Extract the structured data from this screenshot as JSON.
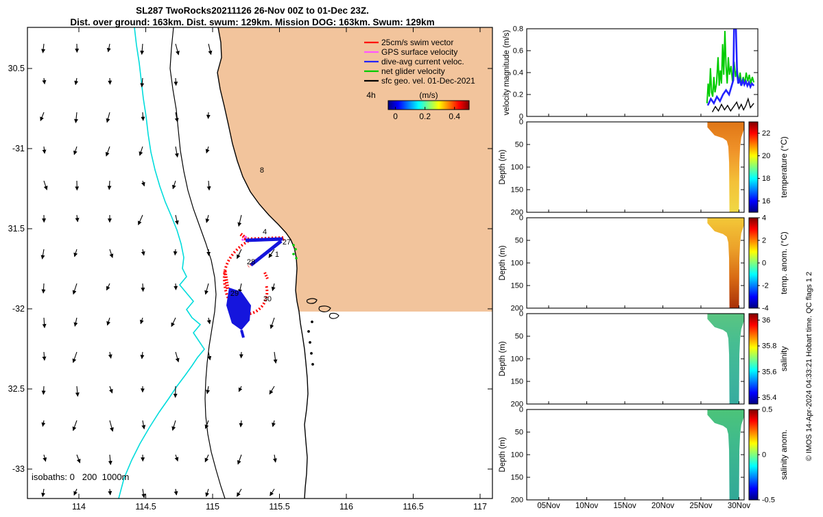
{
  "header": {
    "title": "SL287 TwoRocks20211126 26-Nov 00Z to 01-Dec 23Z.",
    "subtitle": "Dist. over ground: 163km. Dist. swum: 129km. Mission DOG: 163km. Swum: 129km"
  },
  "watermark": "© IMOS 14-Apr-2024 04:33:21 Hobart time. QC flags 1 2",
  "map": {
    "land_color": "#f2c49c",
    "isobath_200_color": "#00dcdc",
    "isobaths_note": "isobaths: 0   200  1000m",
    "xticks": [
      {
        "v": 114,
        "s": "114"
      },
      {
        "v": 114.5,
        "s": "114.5"
      },
      {
        "v": 115,
        "s": "115"
      },
      {
        "v": 115.5,
        "s": "115.5"
      },
      {
        "v": 116,
        "s": "116"
      },
      {
        "v": 116.5,
        "s": "116.5"
      },
      {
        "v": 117,
        "s": "117"
      }
    ],
    "yticks": [
      {
        "v": 30.5,
        "s": "30.5"
      },
      {
        "v": 31,
        "s": "-31"
      },
      {
        "v": 31.5,
        "s": "31.5"
      },
      {
        "v": 32,
        "s": "-32"
      },
      {
        "v": 32.5,
        "s": "32.5"
      },
      {
        "v": 33,
        "s": "-33"
      }
    ],
    "legend": {
      "duration_label": "4h",
      "colorbar_title": "(m/s)",
      "colorbar_ticks": [
        {
          "f": 0.09,
          "s": "0"
        },
        {
          "f": 0.455,
          "s": "0.2"
        },
        {
          "f": 0.82,
          "s": "0.4"
        }
      ],
      "items": [
        {
          "label": "25cm/s swim vector",
          "color": "#ff0000"
        },
        {
          "label": "GPS surface velocity",
          "color": "#ff55ff"
        },
        {
          "label": "dive-avg current veloc.",
          "color": "#2222ff"
        },
        {
          "label": "net glider velocity",
          "color": "#00cc00"
        },
        {
          "label": "sfc geo. vel. 01-Dec-2021",
          "color": "#000000"
        }
      ]
    }
  },
  "panels": {
    "ylabel_velocity": "velocity magnitude (m/s)",
    "ylabel_depth": "Depth (m)",
    "depth_ticks": [
      {
        "v": 0,
        "s": "0"
      },
      {
        "v": 50,
        "s": "50"
      },
      {
        "v": 100,
        "s": "100"
      },
      {
        "v": 150,
        "s": "150"
      },
      {
        "v": 200,
        "s": "200"
      }
    ],
    "date_ticks": [
      {
        "v": 5,
        "s": "05Nov"
      },
      {
        "v": 10,
        "s": "10Nov"
      },
      {
        "v": 15,
        "s": "15Nov"
      },
      {
        "v": 20,
        "s": "20Nov"
      },
      {
        "v": 25,
        "s": "25Nov"
      },
      {
        "v": 30,
        "s": "30Nov"
      }
    ]
  },
  "chart_data": [
    {
      "id": "map",
      "type": "map",
      "title": "Glider mission track off Two Rocks, Western Australia",
      "xlim": [
        113.62,
        117.09
      ],
      "ylim": [
        -33.19,
        -30.24
      ],
      "isobaths_m": [
        0,
        200,
        1000
      ],
      "waypoints": [
        {
          "label": "8",
          "lon": 115.369,
          "lat": -31.132
        },
        {
          "label": "4",
          "lon": 115.39,
          "lat": -31.517
        },
        {
          "label": "27",
          "lon": 115.554,
          "lat": -31.581
        },
        {
          "label": "1",
          "lon": 115.482,
          "lat": -31.658
        },
        {
          "label": "28",
          "lon": 115.287,
          "lat": -31.705
        },
        {
          "label": "29",
          "lon": 115.164,
          "lat": -31.902
        },
        {
          "label": "30",
          "lon": 115.41,
          "lat": -31.936
        }
      ]
    },
    {
      "id": "velocity",
      "type": "line",
      "ylabel": "velocity magnitude (m/s)",
      "ylim": [
        0,
        0.8
      ],
      "yticks": [
        {
          "v": 0,
          "s": "0"
        },
        {
          "v": 0.2,
          "s": "0.2"
        },
        {
          "v": 0.4,
          "s": "0.4"
        },
        {
          "v": 0.6,
          "s": "0.6"
        },
        {
          "v": 0.8,
          "s": "0.8"
        }
      ],
      "x_unit": "day of November 2021",
      "series": [
        {
          "name": "net glider velocity",
          "color": "#00cc00",
          "width": 2,
          "points": [
            [
              25.8,
              0.12
            ],
            [
              25.95,
              0.3
            ],
            [
              26.1,
              0.18
            ],
            [
              26.25,
              0.44
            ],
            [
              26.4,
              0.22
            ],
            [
              26.55,
              0.18
            ],
            [
              26.7,
              0.36
            ],
            [
              26.85,
              0.22
            ],
            [
              27.05,
              0.3
            ],
            [
              27.25,
              0.54
            ],
            [
              27.4,
              0.28
            ],
            [
              27.55,
              0.42
            ],
            [
              27.7,
              0.3
            ],
            [
              27.85,
              0.66
            ],
            [
              28.0,
              0.38
            ],
            [
              28.15,
              0.78
            ],
            [
              28.3,
              0.46
            ],
            [
              28.45,
              0.3
            ],
            [
              28.6,
              0.54
            ],
            [
              28.75,
              0.38
            ],
            [
              28.95,
              0.46
            ],
            [
              29.15,
              0.32
            ],
            [
              29.35,
              0.5
            ],
            [
              29.55,
              0.36
            ],
            [
              29.75,
              0.44
            ],
            [
              29.95,
              0.3
            ],
            [
              30.15,
              0.4
            ],
            [
              30.35,
              0.28
            ],
            [
              30.55,
              0.36
            ],
            [
              30.75,
              0.3
            ],
            [
              30.95,
              0.4
            ],
            [
              31.15,
              0.32
            ],
            [
              31.35,
              0.38
            ],
            [
              31.55,
              0.3
            ],
            [
              31.75,
              0.36
            ],
            [
              31.95,
              0.31
            ]
          ]
        },
        {
          "name": "dive-avg current veloc.",
          "color": "#2222ff",
          "width": 2.6,
          "points": [
            [
              25.9,
              0.1
            ],
            [
              26.3,
              0.16
            ],
            [
              26.7,
              0.12
            ],
            [
              27.1,
              0.18
            ],
            [
              27.5,
              0.14
            ],
            [
              27.9,
              0.2
            ],
            [
              28.3,
              0.24
            ],
            [
              28.7,
              0.2
            ],
            [
              29.0,
              0.27
            ],
            [
              29.25,
              0.33
            ],
            [
              29.35,
              0.8
            ],
            [
              29.6,
              0.8
            ],
            [
              29.75,
              0.4
            ],
            [
              29.9,
              0.3
            ],
            [
              30.1,
              0.34
            ],
            [
              30.3,
              0.28
            ],
            [
              30.5,
              0.33
            ],
            [
              30.7,
              0.29
            ],
            [
              30.9,
              0.32
            ],
            [
              31.1,
              0.28
            ],
            [
              31.3,
              0.31
            ],
            [
              31.5,
              0.27
            ],
            [
              31.7,
              0.3
            ],
            [
              31.95,
              0.28
            ]
          ]
        },
        {
          "name": "sfc geo. vel. 01-Dec-2021",
          "color": "#000000",
          "width": 1.4,
          "points": [
            [
              26.5,
              0.04
            ],
            [
              26.9,
              0.09
            ],
            [
              27.3,
              0.05
            ],
            [
              27.7,
              0.11
            ],
            [
              28.1,
              0.06
            ],
            [
              28.5,
              0.1
            ],
            [
              28.9,
              0.05
            ],
            [
              29.3,
              0.09
            ],
            [
              29.7,
              0.13
            ],
            [
              30.0,
              0.07
            ],
            [
              30.3,
              0.11
            ],
            [
              30.6,
              0.06
            ],
            [
              30.9,
              0.1
            ],
            [
              31.2,
              0.16
            ],
            [
              31.5,
              0.08
            ],
            [
              31.95,
              0.12
            ]
          ]
        }
      ]
    },
    {
      "id": "temperature",
      "type": "heatmap",
      "ylabel": "Depth (m)",
      "clabel": "temperature (°C)",
      "ylim": [
        200,
        0
      ],
      "colorbar": {
        "range": [
          15,
          23
        ],
        "ticks": [
          {
            "v": 22,
            "s": "22"
          },
          {
            "v": 20,
            "s": "20"
          },
          {
            "v": 18,
            "s": "18"
          },
          {
            "v": 16,
            "s": "16"
          }
        ]
      },
      "gradient": [
        "#e07616",
        "#f0942a",
        "#f3c138",
        "#f0d844"
      ],
      "coverage": [
        [
          25.85,
          0
        ],
        [
          30.7,
          0
        ],
        [
          30.7,
          14
        ],
        [
          30.55,
          22
        ],
        [
          30.3,
          34
        ],
        [
          30.15,
          55
        ],
        [
          30.05,
          90
        ],
        [
          30.0,
          200
        ],
        [
          28.75,
          200
        ],
        [
          28.7,
          90
        ],
        [
          28.6,
          55
        ],
        [
          28.4,
          42
        ],
        [
          27.9,
          36
        ],
        [
          26.8,
          30
        ],
        [
          25.85,
          12
        ]
      ]
    },
    {
      "id": "temp_anom",
      "type": "heatmap",
      "ylabel": "Depth (m)",
      "clabel": "temp. anom. (°C)",
      "ylim": [
        200,
        0
      ],
      "colorbar": {
        "range": [
          -4,
          4
        ],
        "ticks": [
          {
            "v": 4,
            "s": "4"
          },
          {
            "v": 2,
            "s": "2"
          },
          {
            "v": 0,
            "s": "0"
          },
          {
            "v": -2,
            "s": "-2"
          },
          {
            "v": -4,
            "s": "-4"
          }
        ]
      },
      "gradient": [
        "#f3c838",
        "#eca22a",
        "#d86a14",
        "#a83008"
      ],
      "coverage": [
        [
          25.85,
          0
        ],
        [
          30.7,
          0
        ],
        [
          30.7,
          14
        ],
        [
          30.55,
          22
        ],
        [
          30.3,
          34
        ],
        [
          30.15,
          55
        ],
        [
          30.05,
          90
        ],
        [
          30.0,
          200
        ],
        [
          28.75,
          200
        ],
        [
          28.7,
          90
        ],
        [
          28.6,
          55
        ],
        [
          28.4,
          42
        ],
        [
          27.9,
          36
        ],
        [
          26.8,
          30
        ],
        [
          25.85,
          12
        ]
      ]
    },
    {
      "id": "salinity",
      "type": "heatmap",
      "ylabel": "Depth (m)",
      "clabel": "salinity",
      "ylim": [
        200,
        0
      ],
      "colorbar": {
        "range": [
          35.35,
          36.05
        ],
        "ticks": [
          {
            "v": 36,
            "s": "36"
          },
          {
            "v": 35.8,
            "s": "35.8"
          },
          {
            "v": 35.6,
            "s": "35.6"
          },
          {
            "v": 35.4,
            "s": "35.4"
          }
        ]
      },
      "gradient": [
        "#5ac581",
        "#46bd92",
        "#3eb59b",
        "#37ab9f"
      ],
      "coverage": [
        [
          25.85,
          0
        ],
        [
          30.7,
          0
        ],
        [
          30.7,
          14
        ],
        [
          30.55,
          22
        ],
        [
          30.3,
          34
        ],
        [
          30.15,
          55
        ],
        [
          30.05,
          90
        ],
        [
          30.0,
          200
        ],
        [
          28.75,
          200
        ],
        [
          28.7,
          90
        ],
        [
          28.6,
          55
        ],
        [
          28.4,
          42
        ],
        [
          27.9,
          36
        ],
        [
          26.8,
          30
        ],
        [
          25.85,
          12
        ]
      ]
    },
    {
      "id": "salinity_anom",
      "type": "heatmap",
      "ylabel": "Depth (m)",
      "clabel": "salinity anom.",
      "ylim": [
        200,
        0
      ],
      "colorbar": {
        "range": [
          -0.5,
          0.5
        ],
        "ticks": [
          {
            "v": 0.5,
            "s": "0.5"
          },
          {
            "v": 0,
            "s": "0"
          },
          {
            "v": -0.5,
            "s": "-0.5"
          }
        ]
      },
      "gradient": [
        "#4cc479",
        "#40bb8b",
        "#38b193",
        "#32a897"
      ],
      "coverage": [
        [
          25.85,
          0
        ],
        [
          30.7,
          0
        ],
        [
          30.7,
          14
        ],
        [
          30.55,
          22
        ],
        [
          30.3,
          34
        ],
        [
          30.15,
          55
        ],
        [
          30.05,
          90
        ],
        [
          30.0,
          200
        ],
        [
          28.75,
          200
        ],
        [
          28.7,
          90
        ],
        [
          28.6,
          55
        ],
        [
          28.4,
          42
        ],
        [
          27.9,
          36
        ],
        [
          26.8,
          30
        ],
        [
          25.85,
          12
        ]
      ]
    }
  ]
}
